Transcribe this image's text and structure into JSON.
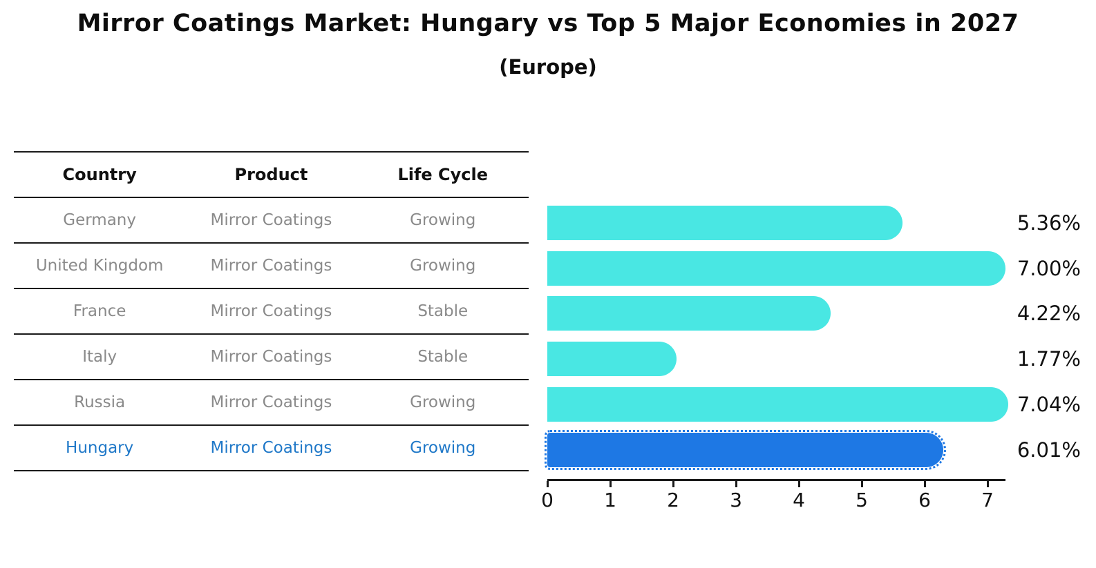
{
  "title": "Mirror Coatings Market: Hungary vs Top 5 Major Economies in 2027",
  "subtitle": "(Europe)",
  "table": {
    "headers": [
      "Country",
      "Product",
      "Life Cycle"
    ],
    "rows": [
      {
        "country": "Germany",
        "product": "Mirror Coatings",
        "life_cycle": "Growing",
        "highlight": false
      },
      {
        "country": "United Kingdom",
        "product": "Mirror Coatings",
        "life_cycle": "Growing",
        "highlight": false
      },
      {
        "country": "France",
        "product": "Mirror Coatings",
        "life_cycle": "Stable",
        "highlight": false
      },
      {
        "country": "Italy",
        "product": "Mirror Coatings",
        "life_cycle": "Stable",
        "highlight": false
      },
      {
        "country": "Russia",
        "product": "Mirror Coatings",
        "life_cycle": "Growing",
        "highlight": false
      },
      {
        "country": "Hungary",
        "product": "Mirror Coatings",
        "life_cycle": "Growing",
        "highlight": true
      }
    ]
  },
  "chart_data": {
    "type": "bar",
    "orientation": "horizontal",
    "title": "Mirror Coatings Market: Hungary vs Top 5 Major Economies in 2027",
    "subtitle": "(Europe)",
    "categories": [
      "Germany",
      "United Kingdom",
      "France",
      "Italy",
      "Russia",
      "Hungary"
    ],
    "values": [
      5.36,
      7.0,
      4.22,
      1.77,
      7.04,
      6.01
    ],
    "labels": [
      "5.36%",
      "7.00%",
      "4.22%",
      "1.77%",
      "7.04%",
      "6.01%"
    ],
    "highlights": [
      false,
      false,
      false,
      false,
      false,
      true
    ],
    "xlabel": "",
    "ylabel": "",
    "xlim": [
      0,
      7.3
    ],
    "xticks": [
      "0",
      "1",
      "2",
      "3",
      "4",
      "5",
      "6",
      "7"
    ],
    "grid": false,
    "legend": false,
    "bar_color": "#49e7e3",
    "highlight_color": "#1e78e4",
    "highlight_text_color": "#1f78c8"
  }
}
